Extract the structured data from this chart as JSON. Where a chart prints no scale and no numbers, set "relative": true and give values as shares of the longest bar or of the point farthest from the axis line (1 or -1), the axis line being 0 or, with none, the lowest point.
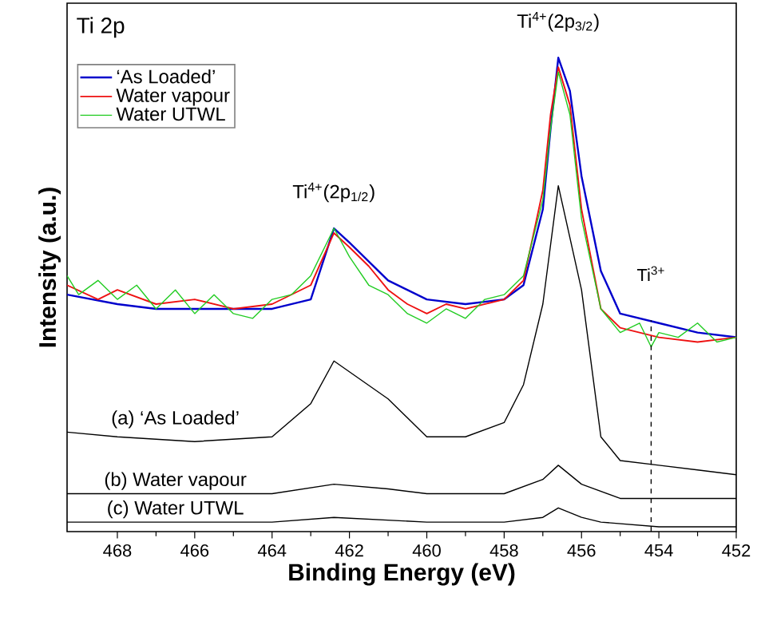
{
  "chart_data": {
    "type": "line",
    "relative": true,
    "xlabel": "Binding Energy (eV)",
    "ylabel": "Intensity (a.u.)",
    "xlim": [
      469.3,
      452
    ],
    "xticks": [
      468,
      466,
      464,
      462,
      460,
      458,
      456,
      454,
      452
    ],
    "legend": "top left",
    "grid": false,
    "marker": "none",
    "line_style": "solid",
    "series": [
      {
        "name": "‘As Loaded’",
        "color": "#0000cc",
        "x": [
          469.3,
          468,
          467,
          466,
          465,
          464,
          463,
          462.4,
          462,
          461,
          460,
          459,
          458,
          457.5,
          457,
          456.8,
          456.6,
          456.3,
          456,
          455.5,
          455,
          454,
          453,
          452
        ],
        "values": [
          0.5,
          0.48,
          0.47,
          0.47,
          0.47,
          0.47,
          0.49,
          0.64,
          0.61,
          0.53,
          0.49,
          0.48,
          0.49,
          0.52,
          0.68,
          0.85,
          1.0,
          0.93,
          0.75,
          0.55,
          0.46,
          0.44,
          0.42,
          0.41
        ]
      },
      {
        "name": "Water vapour",
        "color": "#ee1111",
        "x": [
          469.3,
          468.5,
          468,
          467,
          466,
          465,
          464,
          463,
          462.4,
          462,
          461.5,
          461,
          460.5,
          460,
          459.5,
          459,
          458,
          457.5,
          457,
          456.8,
          456.6,
          456.3,
          456,
          455.5,
          455,
          454.5,
          454,
          453,
          452
        ],
        "values": [
          0.52,
          0.49,
          0.51,
          0.48,
          0.49,
          0.47,
          0.48,
          0.52,
          0.63,
          0.6,
          0.56,
          0.51,
          0.48,
          0.46,
          0.48,
          0.47,
          0.49,
          0.53,
          0.72,
          0.88,
          0.98,
          0.9,
          0.68,
          0.47,
          0.43,
          0.42,
          0.41,
          0.4,
          0.41
        ]
      },
      {
        "name": "Water UTWL",
        "color": "#22cc22",
        "x": [
          469.3,
          469,
          468.5,
          468,
          467.5,
          467,
          466.5,
          466,
          465.5,
          465,
          464.5,
          464,
          463.5,
          463,
          462.4,
          462,
          461.5,
          461,
          460.5,
          460,
          459.5,
          459,
          458.5,
          458,
          457.5,
          457,
          456.8,
          456.6,
          456.3,
          456,
          455.5,
          455,
          454.5,
          454.2,
          454,
          453.5,
          453,
          452.5,
          452
        ],
        "values": [
          0.54,
          0.5,
          0.53,
          0.49,
          0.52,
          0.47,
          0.51,
          0.46,
          0.5,
          0.46,
          0.45,
          0.49,
          0.5,
          0.54,
          0.64,
          0.58,
          0.52,
          0.5,
          0.46,
          0.44,
          0.47,
          0.45,
          0.49,
          0.5,
          0.54,
          0.7,
          0.85,
          0.97,
          0.88,
          0.66,
          0.47,
          0.42,
          0.44,
          0.39,
          0.42,
          0.41,
          0.44,
          0.4,
          0.41
        ]
      },
      {
        "color": "#000000",
        "x": [
          469.3,
          468,
          466,
          464,
          463,
          462.4,
          461,
          460,
          459,
          458,
          457.5,
          457,
          456.6,
          456,
          455.5,
          455,
          454,
          453,
          452
        ],
        "values": [
          0.21,
          0.2,
          0.19,
          0.2,
          0.27,
          0.36,
          0.28,
          0.2,
          0.2,
          0.23,
          0.31,
          0.48,
          0.73,
          0.51,
          0.2,
          0.15,
          0.14,
          0.13,
          0.12
        ]
      },
      {
        "color": "#000000",
        "x": [
          469.3,
          468,
          466,
          464,
          462.4,
          461,
          460,
          458,
          457,
          456.6,
          456,
          455,
          454,
          452
        ],
        "values": [
          0.08,
          0.08,
          0.08,
          0.08,
          0.1,
          0.09,
          0.08,
          0.08,
          0.11,
          0.14,
          0.1,
          0.07,
          0.07,
          0.07
        ]
      },
      {
        "color": "#000000",
        "x": [
          469.3,
          468,
          466,
          464,
          462.4,
          460,
          458,
          457,
          456.6,
          456,
          455.5,
          454,
          452
        ],
        "values": [
          0.02,
          0.02,
          0.02,
          0.02,
          0.03,
          0.02,
          0.02,
          0.03,
          0.05,
          0.03,
          0.02,
          0.01,
          0.01
        ]
      }
    ],
    "ref_lines": [
      {
        "axis": "x",
        "value": 454.2,
        "label": "Ti$^{3+}$",
        "line_style": "dashed",
        "color": "#000000"
      }
    ],
    "annotations": [
      "Ti 2p",
      {
        "text": "Ti$^{4+}$(2p$_{1/2}$)",
        "x": 462.4,
        "y": 0.64
      },
      {
        "text": "Ti$^{4+}$(2p$_{3/2}$)",
        "x": 456.6,
        "y": 1.0
      },
      {
        "text": "(a) ‘As Loaded’",
        "x": 466.5,
        "y": 0.21
      },
      {
        "text": "(b) Water vapour",
        "x": 466.5,
        "y": 0.08
      },
      {
        "text": "(c) Water UTWL",
        "x": 466.5,
        "y": 0.02
      }
    ]
  }
}
